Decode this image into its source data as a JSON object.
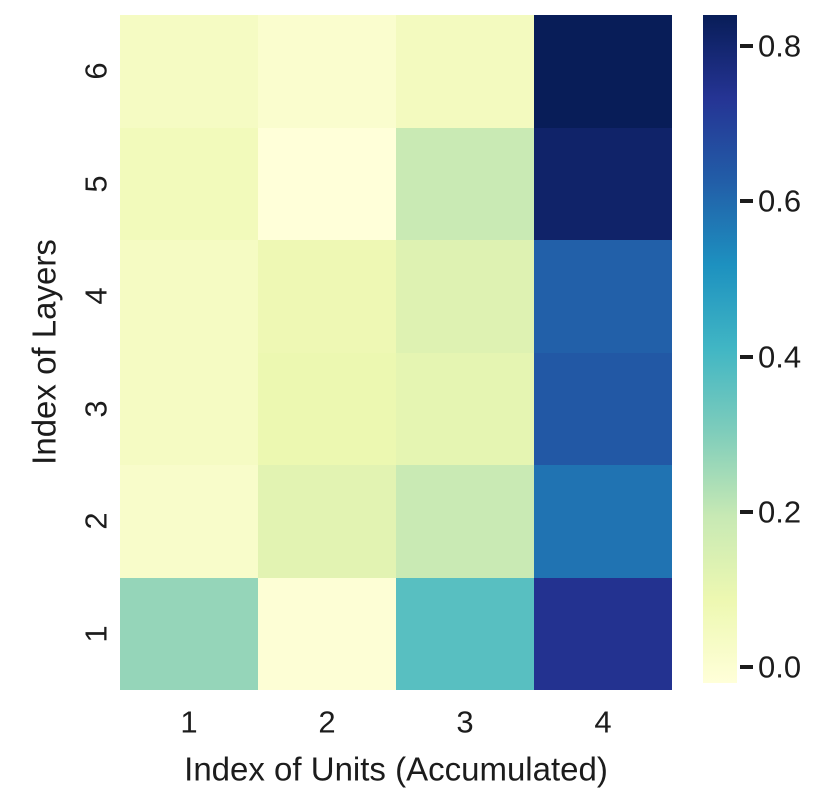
{
  "figure": {
    "background_color": "#ffffff",
    "text_color": "#1c1c1c"
  },
  "chart_data": {
    "type": "heatmap",
    "title": "",
    "xlabel": "Index of Units (Accumulated)",
    "ylabel": "Index of Layers",
    "x_ticklabels": [
      "1",
      "2",
      "3",
      "4"
    ],
    "y_ticklabels": [
      "6",
      "5",
      "4",
      "3",
      "2",
      "1"
    ],
    "matrix_rows_top_to_bottom": [
      {
        "layer": "6",
        "values": [
          0.04,
          0.01,
          0.05,
          0.84
        ]
      },
      {
        "layer": "5",
        "values": [
          0.06,
          -0.02,
          0.19,
          0.81
        ]
      },
      {
        "layer": "4",
        "values": [
          0.04,
          0.08,
          0.13,
          0.62
        ]
      },
      {
        "layer": "3",
        "values": [
          0.04,
          0.09,
          0.11,
          0.64
        ]
      },
      {
        "layer": "2",
        "values": [
          0.02,
          0.12,
          0.19,
          0.58
        ]
      },
      {
        "layer": "1",
        "values": [
          0.27,
          -0.01,
          0.37,
          0.74
        ]
      }
    ],
    "vmin": -0.02,
    "vmax": 0.84,
    "colormap": {
      "name": "YlGnBu",
      "stops": [
        "#ffffd9",
        "#edf8b1",
        "#c7e9b4",
        "#7fcdbb",
        "#41b6c4",
        "#1d91c0",
        "#225ea8",
        "#253494",
        "#081d58"
      ]
    },
    "colorbar": {
      "ticks": [
        0.8,
        0.6,
        0.4,
        0.2,
        0.0
      ],
      "tick_labels": [
        "0.8",
        "0.6",
        "0.4",
        "0.2",
        "0.0"
      ]
    },
    "grid": false,
    "legend": false
  }
}
